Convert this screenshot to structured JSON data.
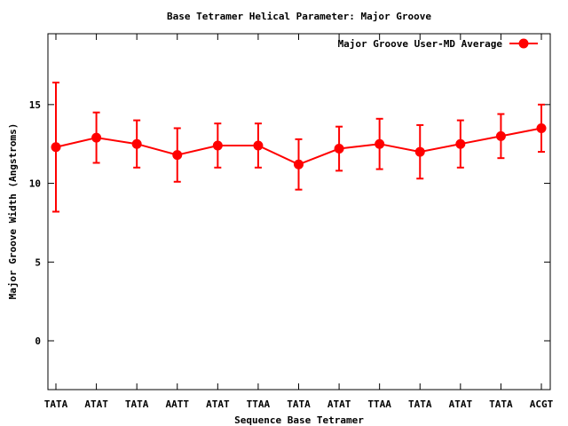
{
  "chart_data": {
    "type": "line",
    "title": "Base Tetramer Helical Parameter: Major Groove",
    "xlabel": "Sequence Base Tetramer",
    "ylabel": "Major Groove Width (Angstroms)",
    "categories": [
      "TATA",
      "ATAT",
      "TATA",
      "AATT",
      "ATAT",
      "TTAA",
      "TATA",
      "ATAT",
      "TTAA",
      "TATA",
      "ATAT",
      "TATA",
      "ACGT"
    ],
    "ylim": [
      -3.1,
      19.5
    ],
    "yticks": [
      0,
      5,
      10,
      15
    ],
    "grid": false,
    "legend_position": "top-right",
    "series": [
      {
        "name": "Major Groove User-MD Average",
        "color": "#ff0000",
        "values": [
          12.3,
          12.9,
          12.5,
          11.8,
          12.4,
          12.4,
          11.2,
          12.2,
          12.5,
          12.0,
          12.5,
          13.0,
          13.5
        ],
        "error": [
          4.1,
          1.6,
          1.5,
          1.7,
          1.4,
          1.4,
          1.6,
          1.4,
          1.6,
          1.7,
          1.5,
          1.4,
          1.5
        ]
      }
    ]
  }
}
